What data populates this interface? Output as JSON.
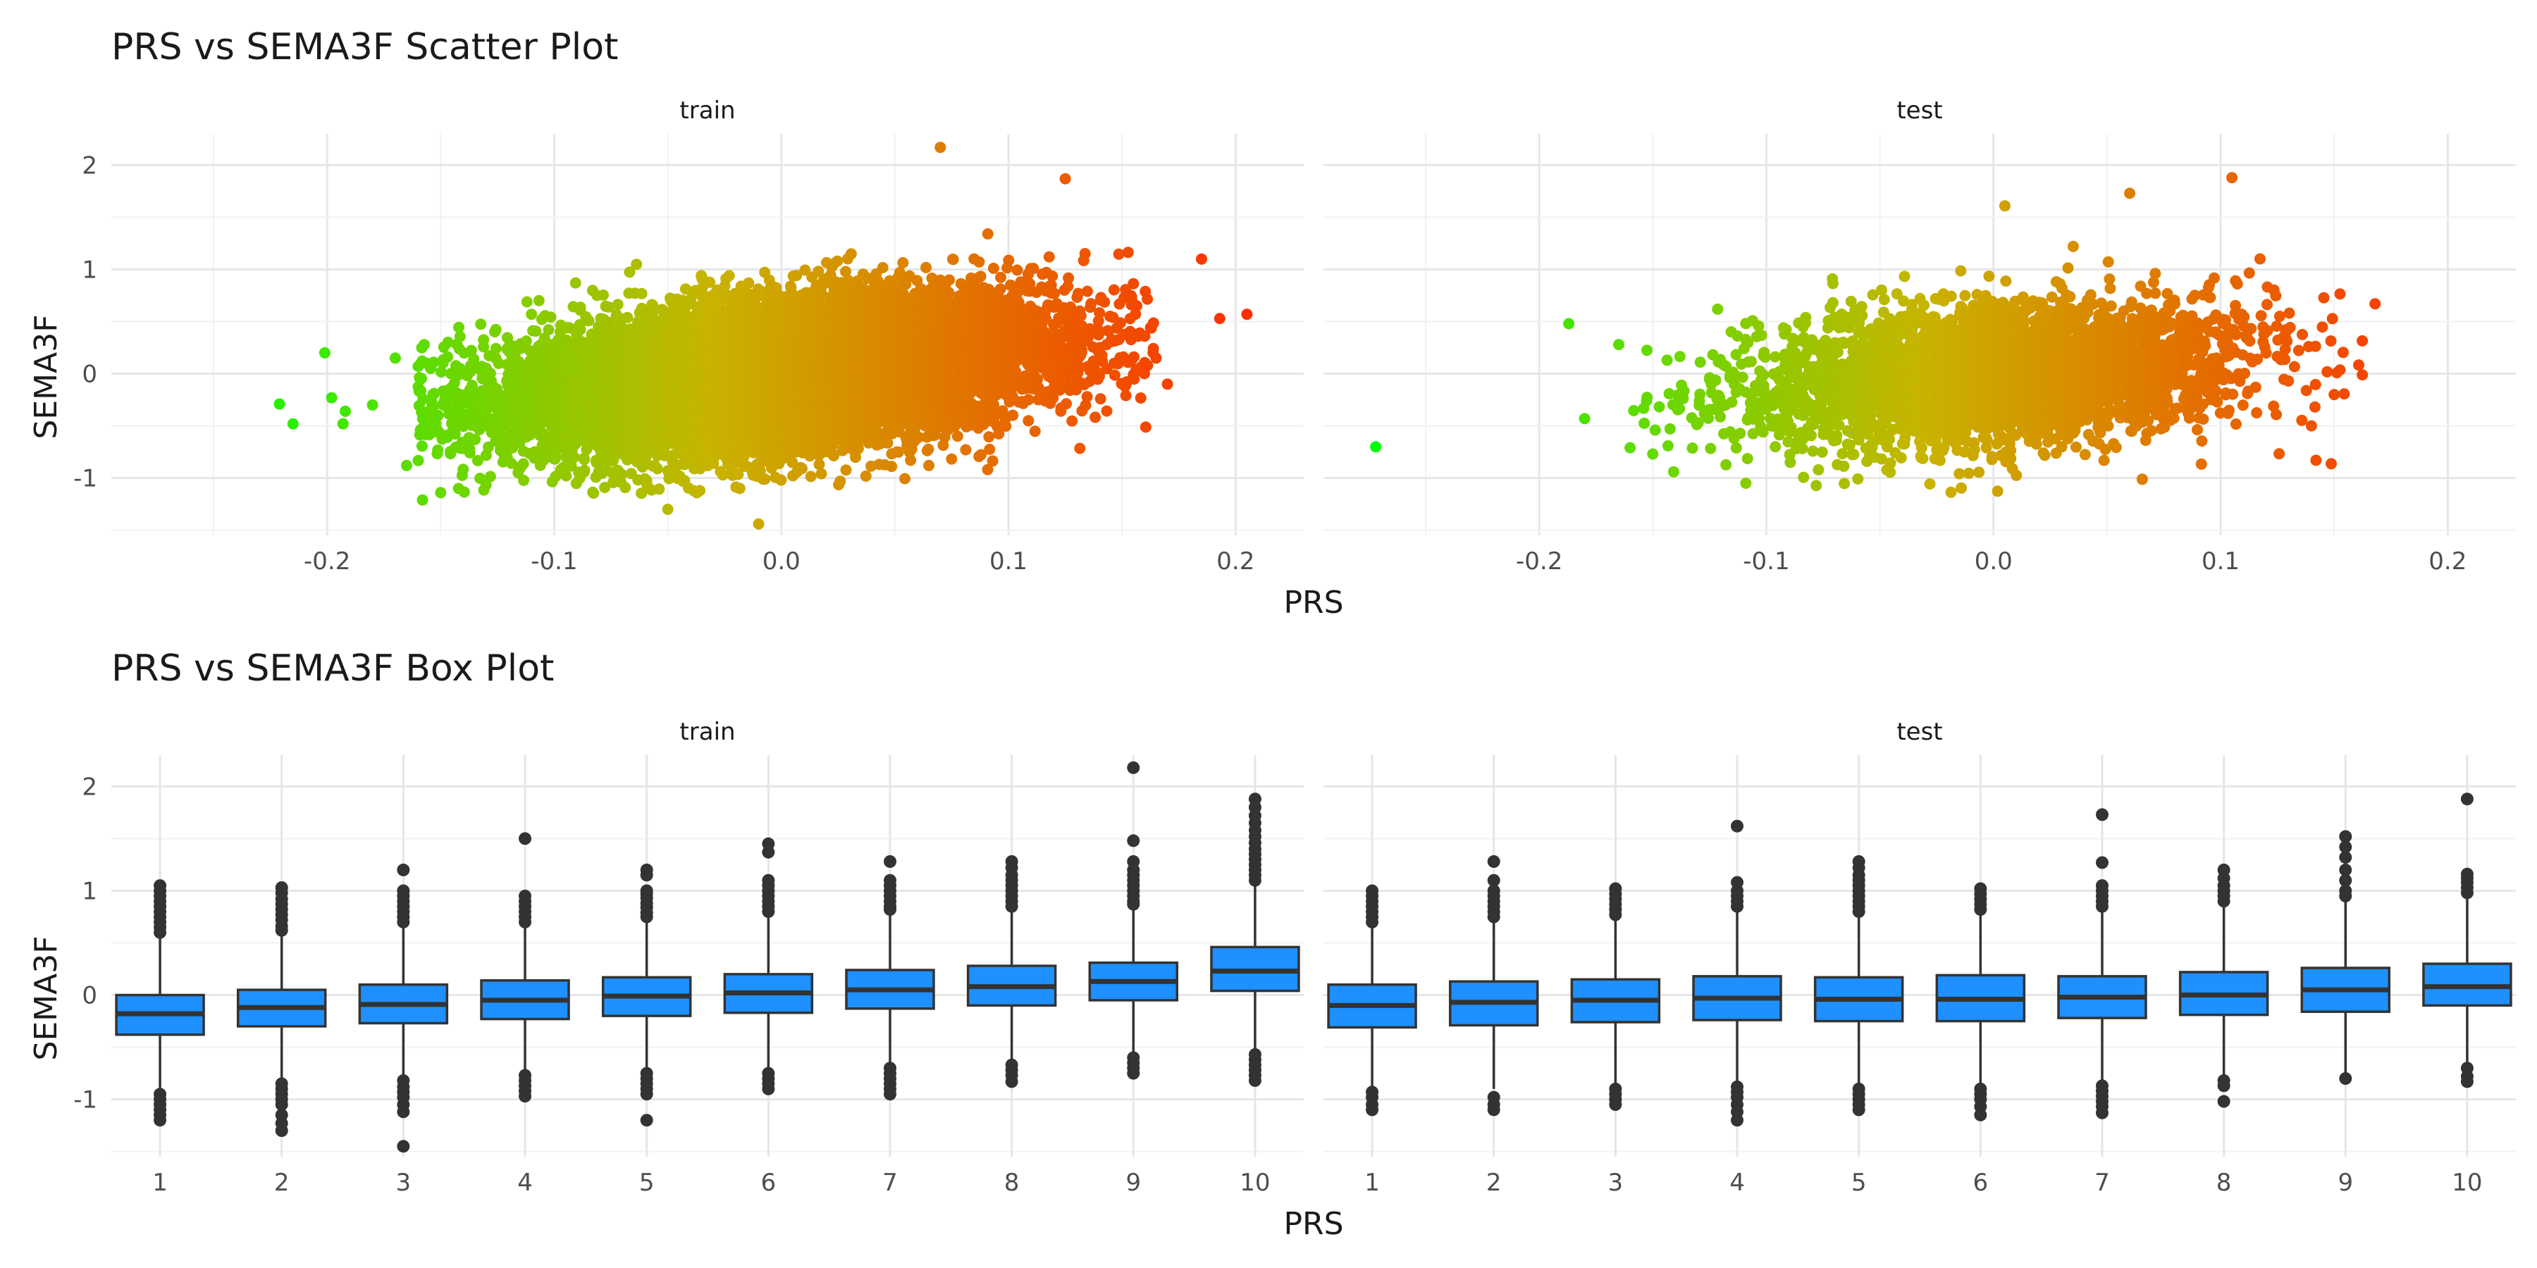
{
  "figure": {
    "scatter_title": "PRS vs SEMA3F Scatter Plot",
    "box_title": "PRS vs SEMA3F Box Plot",
    "panel_labels": [
      "train",
      "test"
    ],
    "x_label": "PRS",
    "y_label": "SEMA3F"
  },
  "colors": {
    "low": "#00ff00",
    "mid": "#c8b400",
    "high": "#ff2a00",
    "box_fill": "#1e90ff",
    "box_line": "#333333",
    "grid_major": "#e6e6e6",
    "grid_minor": "#f2f2f2"
  },
  "chart_data": [
    {
      "type": "scatter",
      "title": "PRS vs SEMA3F Scatter Plot",
      "xlabel": "PRS",
      "ylabel": "SEMA3F",
      "xlim": [
        -0.295,
        0.23
      ],
      "ylim": [
        -1.55,
        2.3
      ],
      "x_ticks": [
        -0.2,
        -0.1,
        0.0,
        0.1,
        0.2
      ],
      "x_tick_labels": [
        "-0.2",
        "-0.1",
        "0.0",
        "0.1",
        "0.2"
      ],
      "y_ticks": [
        -1,
        0,
        1,
        2
      ],
      "y_tick_labels": [
        "-1",
        "0",
        "1",
        "2"
      ],
      "grid": true,
      "color_by": "x",
      "panels": [
        {
          "name": "train",
          "cloud": {
            "n": 14000,
            "x_mean": 0.0,
            "x_sd": 0.055,
            "slope": 2.3,
            "intercept": 0.0,
            "y_sd": 0.33
          },
          "points": [
            [
              -0.221,
              -0.29
            ],
            [
              -0.215,
              -0.48
            ],
            [
              -0.201,
              0.2
            ],
            [
              -0.198,
              -0.23
            ],
            [
              -0.193,
              -0.48
            ],
            [
              -0.192,
              -0.36
            ],
            [
              -0.18,
              -0.3
            ],
            [
              -0.17,
              0.15
            ],
            [
              -0.165,
              -0.88
            ],
            [
              -0.158,
              -1.21
            ],
            [
              -0.15,
              -1.14
            ],
            [
              0.07,
              2.17
            ],
            [
              -0.01,
              -1.44
            ],
            [
              -0.05,
              -1.3
            ],
            [
              0.125,
              1.87
            ],
            [
              0.185,
              1.1
            ],
            [
              0.193,
              0.53
            ],
            [
              0.205,
              0.57
            ],
            [
              0.17,
              -0.1
            ],
            [
              0.165,
              0.15
            ]
          ]
        },
        {
          "name": "test",
          "cloud": {
            "n": 3500,
            "x_mean": 0.0,
            "x_sd": 0.055,
            "slope": 1.6,
            "intercept": 0.0,
            "y_sd": 0.33
          },
          "points": [
            [
              -0.272,
              -0.7
            ],
            [
              -0.187,
              0.48
            ],
            [
              -0.18,
              -0.43
            ],
            [
              -0.165,
              0.28
            ],
            [
              -0.16,
              -0.71
            ],
            [
              -0.15,
              -0.77
            ],
            [
              0.105,
              1.88
            ],
            [
              0.06,
              1.73
            ],
            [
              0.005,
              1.61
            ],
            [
              0.168,
              0.67
            ],
            [
              0.142,
              -0.83
            ],
            [
              0.15,
              -0.2
            ],
            [
              0.14,
              -0.5
            ]
          ]
        }
      ]
    },
    {
      "type": "box",
      "title": "PRS vs SEMA3F Box Plot",
      "xlabel": "PRS",
      "ylabel": "SEMA3F",
      "categories": [
        "1",
        "2",
        "3",
        "4",
        "5",
        "6",
        "7",
        "8",
        "9",
        "10"
      ],
      "ylim": [
        -1.55,
        2.3
      ],
      "y_ticks": [
        -1,
        0,
        1,
        2
      ],
      "y_tick_labels": [
        "-1",
        "0",
        "1",
        "2"
      ],
      "grid": true,
      "panels": [
        {
          "name": "train",
          "boxes": [
            {
              "q1": -0.38,
              "median": -0.18,
              "q3": 0.0,
              "whisker_low": -0.93,
              "whisker_high": 0.57,
              "outliers": [
                1.05,
                1.0,
                0.95,
                0.9,
                0.85,
                0.8,
                0.75,
                0.7,
                0.65,
                0.6,
                -0.95,
                -1.0,
                -1.05,
                -1.1,
                -1.15,
                -1.2
              ]
            },
            {
              "q1": -0.3,
              "median": -0.12,
              "q3": 0.05,
              "whisker_low": -0.83,
              "whisker_high": 0.57,
              "outliers": [
                1.03,
                0.98,
                0.92,
                0.87,
                0.82,
                0.77,
                0.72,
                0.66,
                0.62,
                -0.85,
                -0.9,
                -0.95,
                -1.0,
                -1.05,
                -1.15,
                -1.23,
                -1.3
              ]
            },
            {
              "q1": -0.27,
              "median": -0.09,
              "q3": 0.1,
              "whisker_low": -0.8,
              "whisker_high": 0.68,
              "outliers": [
                1.2,
                1.0,
                0.95,
                0.9,
                0.85,
                0.8,
                0.75,
                0.7,
                -0.82,
                -0.88,
                -0.93,
                -0.98,
                -1.05,
                -1.12,
                -1.45
              ]
            },
            {
              "q1": -0.23,
              "median": -0.05,
              "q3": 0.14,
              "whisker_low": -0.75,
              "whisker_high": 0.68,
              "outliers": [
                1.5,
                0.95,
                0.9,
                0.85,
                0.8,
                0.75,
                0.7,
                -0.77,
                -0.82,
                -0.87,
                -0.92,
                -0.97
              ]
            },
            {
              "q1": -0.2,
              "median": -0.01,
              "q3": 0.17,
              "whisker_low": -0.73,
              "whisker_high": 0.73,
              "outliers": [
                1.2,
                1.15,
                1.0,
                0.97,
                0.93,
                0.88,
                0.84,
                0.79,
                0.75,
                -0.75,
                -0.8,
                -0.85,
                -0.9,
                -0.95,
                -1.2
              ]
            },
            {
              "q1": -0.17,
              "median": 0.02,
              "q3": 0.2,
              "whisker_low": -0.73,
              "whisker_high": 0.78,
              "outliers": [
                1.45,
                1.37,
                1.1,
                1.05,
                1.0,
                0.95,
                0.9,
                0.85,
                0.8,
                -0.75,
                -0.8,
                -0.85,
                -0.9
              ]
            },
            {
              "q1": -0.13,
              "median": 0.05,
              "q3": 0.24,
              "whisker_low": -0.68,
              "whisker_high": 0.8,
              "outliers": [
                1.28,
                1.1,
                1.05,
                1.0,
                0.95,
                0.9,
                0.85,
                0.82,
                -0.7,
                -0.75,
                -0.8,
                -0.85,
                -0.9,
                -0.95
              ]
            },
            {
              "q1": -0.1,
              "median": 0.08,
              "q3": 0.28,
              "whisker_low": -0.65,
              "whisker_high": 0.83,
              "outliers": [
                1.28,
                1.22,
                1.15,
                1.1,
                1.05,
                1.0,
                0.95,
                0.9,
                0.85,
                -0.67,
                -0.72,
                -0.77,
                -0.83
              ]
            },
            {
              "q1": -0.05,
              "median": 0.13,
              "q3": 0.31,
              "whisker_low": -0.58,
              "whisker_high": 0.85,
              "outliers": [
                2.18,
                1.48,
                1.28,
                1.2,
                1.15,
                1.1,
                1.05,
                1.0,
                0.95,
                0.9,
                0.87,
                -0.6,
                -0.65,
                -0.7,
                -0.75
              ]
            },
            {
              "q1": 0.04,
              "median": 0.23,
              "q3": 0.46,
              "whisker_low": -0.55,
              "whisker_high": 1.08,
              "outliers": [
                1.88,
                1.8,
                1.72,
                1.65,
                1.58,
                1.52,
                1.46,
                1.4,
                1.35,
                1.3,
                1.25,
                1.2,
                1.15,
                1.1,
                -0.57,
                -0.62,
                -0.67,
                -0.72,
                -0.77,
                -0.82
              ]
            }
          ]
        },
        {
          "name": "test",
          "boxes": [
            {
              "q1": -0.31,
              "median": -0.1,
              "q3": 0.1,
              "whisker_low": -0.9,
              "whisker_high": 0.65,
              "outliers": [
                1.0,
                0.95,
                0.9,
                0.85,
                0.8,
                0.75,
                0.7,
                -0.93,
                -0.98,
                -1.05,
                -1.1
              ]
            },
            {
              "q1": -0.29,
              "median": -0.07,
              "q3": 0.13,
              "whisker_low": -0.9,
              "whisker_high": 0.72,
              "outliers": [
                1.28,
                1.1,
                1.0,
                0.95,
                0.9,
                0.85,
                0.8,
                0.75,
                -0.98,
                -1.05,
                -1.1
              ]
            },
            {
              "q1": -0.26,
              "median": -0.05,
              "q3": 0.15,
              "whisker_low": -0.88,
              "whisker_high": 0.75,
              "outliers": [
                1.02,
                0.97,
                0.92,
                0.87,
                0.82,
                0.77,
                -0.9,
                -0.95,
                -1.0,
                -1.05
              ]
            },
            {
              "q1": -0.24,
              "median": -0.03,
              "q3": 0.18,
              "whisker_low": -0.85,
              "whisker_high": 0.8,
              "outliers": [
                1.62,
                1.08,
                1.0,
                0.95,
                0.9,
                0.85,
                -0.88,
                -0.93,
                -0.98,
                -1.05,
                -1.12,
                -1.2
              ]
            },
            {
              "q1": -0.25,
              "median": -0.04,
              "q3": 0.17,
              "whisker_low": -0.87,
              "whisker_high": 0.78,
              "outliers": [
                1.28,
                1.22,
                1.15,
                1.1,
                1.05,
                1.0,
                0.95,
                0.9,
                0.85,
                0.8,
                -0.9,
                -0.95,
                -1.0,
                -1.05,
                -1.1
              ]
            },
            {
              "q1": -0.25,
              "median": -0.04,
              "q3": 0.19,
              "whisker_low": -0.87,
              "whisker_high": 0.8,
              "outliers": [
                1.02,
                0.97,
                0.92,
                0.87,
                0.82,
                -0.9,
                -0.95,
                -1.0,
                -1.07,
                -1.15
              ]
            },
            {
              "q1": -0.22,
              "median": -0.02,
              "q3": 0.18,
              "whisker_low": -0.85,
              "whisker_high": 0.8,
              "outliers": [
                1.73,
                1.27,
                1.05,
                1.0,
                0.95,
                0.9,
                0.85,
                -0.87,
                -0.92,
                -0.97,
                -1.02,
                -1.07,
                -1.13
              ]
            },
            {
              "q1": -0.19,
              "median": 0.0,
              "q3": 0.22,
              "whisker_low": -0.8,
              "whisker_high": 0.85,
              "outliers": [
                1.2,
                1.12,
                1.05,
                1.0,
                0.95,
                0.9,
                -0.82,
                -0.87,
                -1.02
              ]
            },
            {
              "q1": -0.16,
              "median": 0.05,
              "q3": 0.26,
              "whisker_low": -0.78,
              "whisker_high": 0.9,
              "outliers": [
                1.52,
                1.42,
                1.32,
                1.2,
                1.1,
                1.0,
                0.95,
                -0.8
              ]
            },
            {
              "q1": -0.1,
              "median": 0.08,
              "q3": 0.3,
              "whisker_low": -0.68,
              "whisker_high": 0.93,
              "outliers": [
                1.88,
                1.16,
                1.12,
                1.08,
                1.03,
                0.98,
                -0.7,
                -0.78,
                -0.83
              ]
            }
          ]
        }
      ]
    }
  ]
}
